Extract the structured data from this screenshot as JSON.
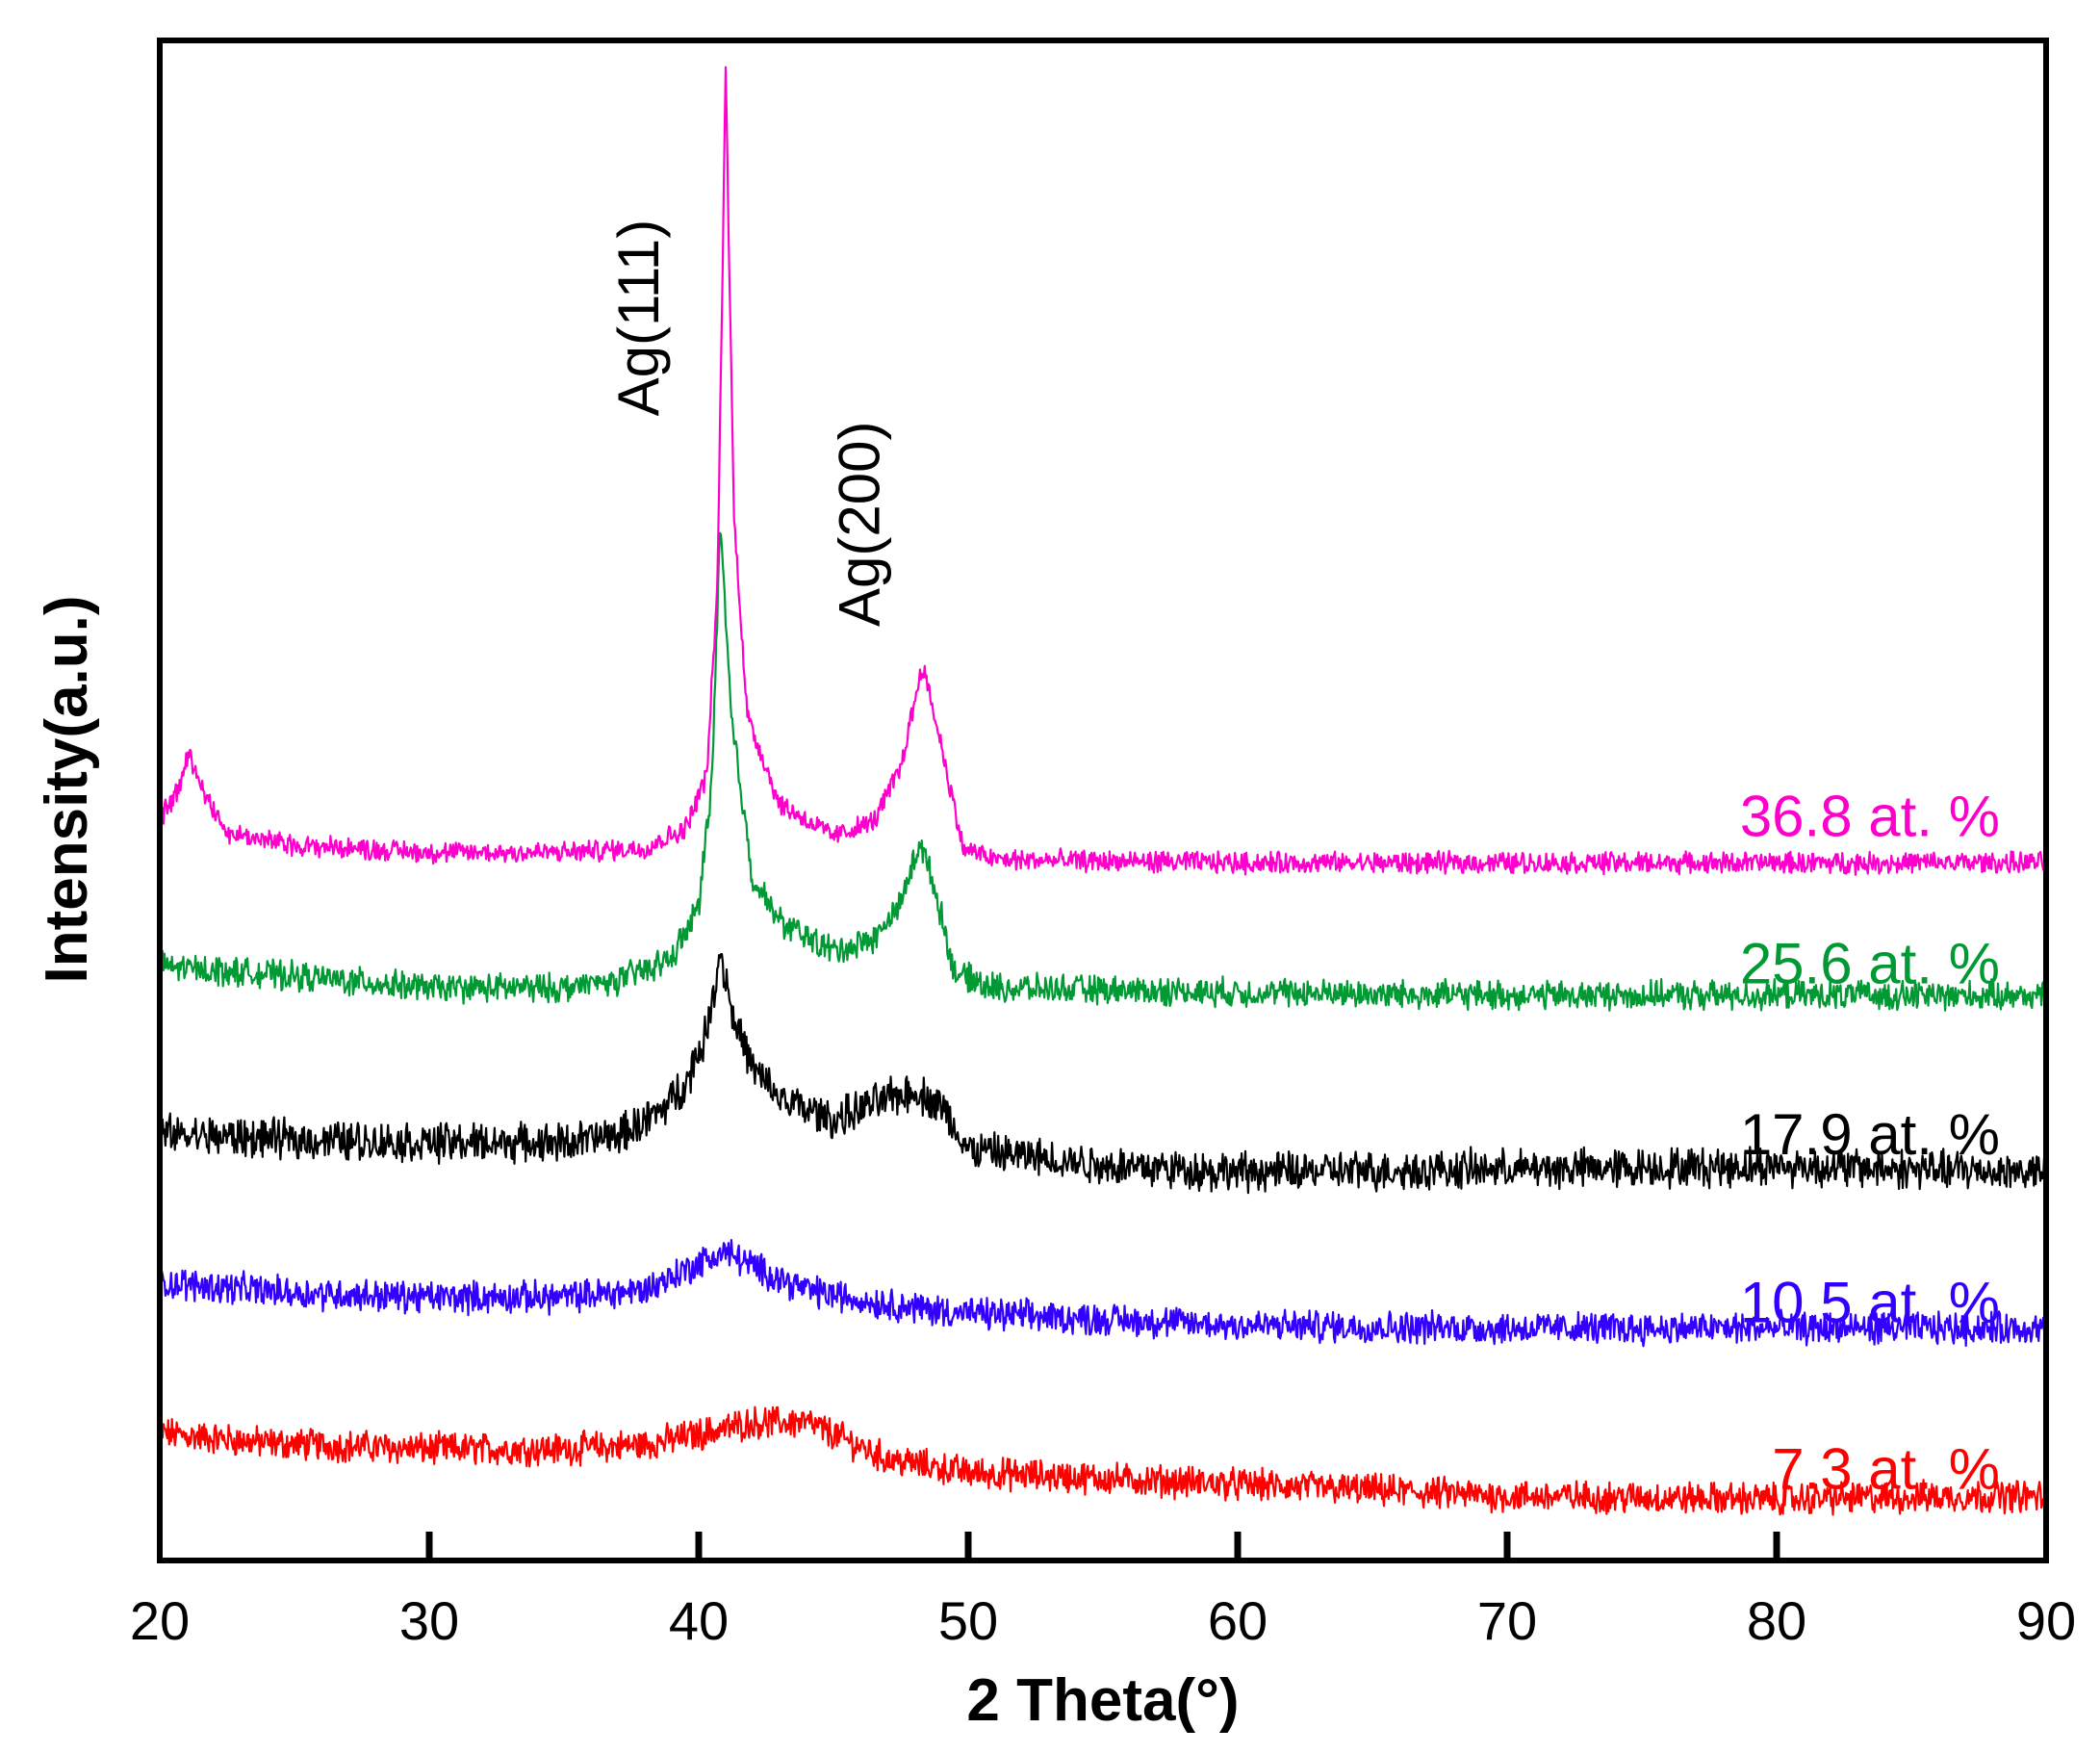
{
  "chart_data": {
    "type": "line",
    "title": "",
    "xlabel": "2 Theta(°)",
    "ylabel": "Intensity(a.u.)",
    "xlim": [
      20,
      90
    ],
    "xticks": [
      20,
      30,
      40,
      50,
      60,
      70,
      80,
      90
    ],
    "xtick_labels": [
      "20",
      "30",
      "40",
      "50",
      "60",
      "70",
      "80",
      "90"
    ],
    "y_ticks_shown": false,
    "grid": false,
    "legend": "inline-right",
    "annotations": [
      {
        "text": "Ag(111)",
        "x": 38.5,
        "y": 0.83,
        "rotation": -90
      },
      {
        "text": "Ag(200)",
        "x": 46.7,
        "y": 0.69,
        "rotation": -90
      }
    ],
    "series": [
      {
        "name": "7.3 at. %",
        "color": "#ff0000",
        "baseline": 0.05,
        "slope": -0.014,
        "noise": 0.009,
        "points": [
          [
            20,
            0.073
          ],
          [
            21,
            0.071
          ],
          [
            24,
            0.066
          ],
          [
            30,
            0.062
          ],
          [
            35,
            0.062
          ],
          [
            38,
            0.065
          ],
          [
            40,
            0.072
          ],
          [
            42,
            0.08
          ],
          [
            44,
            0.08
          ],
          [
            45,
            0.072
          ],
          [
            47,
            0.055
          ],
          [
            50,
            0.046
          ],
          [
            60,
            0.038
          ],
          [
            70,
            0.03
          ],
          [
            80,
            0.028
          ],
          [
            88,
            0.03
          ],
          [
            90,
            0.03
          ]
        ]
      },
      {
        "name": "10.5 at. %",
        "color": "#3300ff",
        "baseline": 0.17,
        "slope": 0,
        "noise": 0.009,
        "points": [
          [
            20,
            0.175
          ],
          [
            25,
            0.168
          ],
          [
            30,
            0.165
          ],
          [
            35,
            0.165
          ],
          [
            38,
            0.17
          ],
          [
            40,
            0.188
          ],
          [
            41,
            0.196
          ],
          [
            42,
            0.186
          ],
          [
            44,
            0.17
          ],
          [
            46,
            0.163
          ],
          [
            48,
            0.158
          ],
          [
            50,
            0.154
          ],
          [
            60,
            0.146
          ],
          [
            70,
            0.144
          ],
          [
            80,
            0.144
          ],
          [
            90,
            0.144
          ]
        ]
      },
      {
        "name": "17.9 at. %",
        "color": "#000000",
        "baseline": 0.27,
        "slope": 0,
        "noise": 0.011,
        "points": [
          [
            20,
            0.276
          ],
          [
            25,
            0.272
          ],
          [
            30,
            0.27
          ],
          [
            35,
            0.27
          ],
          [
            37,
            0.275
          ],
          [
            38.5,
            0.29
          ],
          [
            39.5,
            0.31
          ],
          [
            40.3,
            0.345
          ],
          [
            40.8,
            0.4
          ],
          [
            41.3,
            0.355
          ],
          [
            42,
            0.32
          ],
          [
            43,
            0.3
          ],
          [
            45,
            0.285
          ],
          [
            47,
            0.3
          ],
          [
            48,
            0.305
          ],
          [
            49,
            0.295
          ],
          [
            50,
            0.265
          ],
          [
            55,
            0.255
          ],
          [
            60,
            0.25
          ],
          [
            70,
            0.252
          ],
          [
            80,
            0.254
          ],
          [
            90,
            0.25
          ]
        ]
      },
      {
        "name": "25.6 at. %",
        "color": "#009933",
        "baseline": 0.37,
        "slope": 0,
        "noise": 0.008,
        "points": [
          [
            20,
            0.39
          ],
          [
            25,
            0.383
          ],
          [
            30,
            0.375
          ],
          [
            35,
            0.375
          ],
          [
            37,
            0.38
          ],
          [
            39,
            0.395
          ],
          [
            40,
            0.43
          ],
          [
            40.5,
            0.52
          ],
          [
            40.8,
            0.69
          ],
          [
            41.2,
            0.56
          ],
          [
            42,
            0.45
          ],
          [
            43,
            0.42
          ],
          [
            45,
            0.4
          ],
          [
            46.5,
            0.408
          ],
          [
            47.5,
            0.432
          ],
          [
            48.2,
            0.475
          ],
          [
            48.8,
            0.44
          ],
          [
            49.5,
            0.385
          ],
          [
            51,
            0.375
          ],
          [
            60,
            0.372
          ],
          [
            70,
            0.37
          ],
          [
            80,
            0.37
          ],
          [
            90,
            0.37
          ]
        ]
      },
      {
        "name": "36.8 at. %",
        "color": "#ff00cc",
        "baseline": 0.46,
        "slope": 0,
        "noise": 0.006,
        "points": [
          [
            20,
            0.49
          ],
          [
            20.7,
            0.51
          ],
          [
            21.1,
            0.535
          ],
          [
            21.6,
            0.51
          ],
          [
            22.5,
            0.48
          ],
          [
            25,
            0.472
          ],
          [
            30,
            0.467
          ],
          [
            35,
            0.467
          ],
          [
            38,
            0.47
          ],
          [
            39.5,
            0.483
          ],
          [
            40.3,
            0.52
          ],
          [
            40.7,
            0.65
          ],
          [
            41.0,
            1.0
          ],
          [
            41.3,
            0.7
          ],
          [
            41.8,
            0.56
          ],
          [
            43,
            0.5
          ],
          [
            45,
            0.478
          ],
          [
            46.5,
            0.488
          ],
          [
            47.5,
            0.525
          ],
          [
            48.3,
            0.595
          ],
          [
            49,
            0.54
          ],
          [
            49.8,
            0.47
          ],
          [
            51,
            0.462
          ],
          [
            60,
            0.46
          ],
          [
            70,
            0.46
          ],
          [
            80,
            0.46
          ],
          [
            90,
            0.46
          ]
        ]
      }
    ]
  }
}
